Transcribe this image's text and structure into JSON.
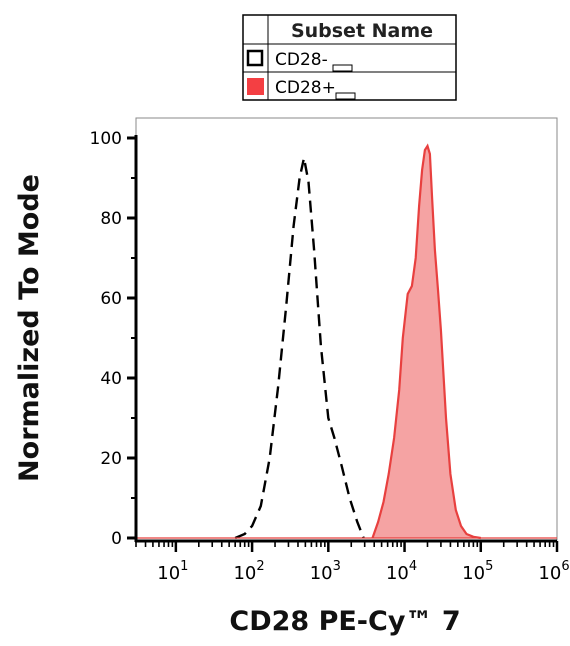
{
  "chart_data": {
    "type": "area",
    "xlabel": "CD28 PE-Cy™ 7",
    "ylabel": "Normalized To Mode",
    "x_scale": "log",
    "xlim": [
      3,
      1000000
    ],
    "ylim": [
      0,
      100
    ],
    "x_ticks": [
      {
        "base": "10",
        "exp": "1",
        "value": 10
      },
      {
        "base": "10",
        "exp": "2",
        "value": 100
      },
      {
        "base": "10",
        "exp": "3",
        "value": 1000
      },
      {
        "base": "10",
        "exp": "4",
        "value": 10000
      },
      {
        "base": "10",
        "exp": "5",
        "value": 100000
      },
      {
        "base": "10",
        "exp": "6",
        "value": 1000000
      }
    ],
    "y_ticks": [
      "0",
      "20",
      "40",
      "60",
      "80",
      "100"
    ],
    "grid": false,
    "legend": {
      "placement": "top-center",
      "header": "Subset Name",
      "entries": [
        "CD28-",
        "CD28+"
      ]
    },
    "series": [
      {
        "name": "CD28-",
        "style": "dashed-outline",
        "color": "#000000",
        "x": [
          60,
          80,
          100,
          130,
          170,
          220,
          280,
          350,
          420,
          480,
          550,
          650,
          800,
          1000,
          1200,
          1500,
          1900,
          2400,
          2900
        ],
        "y": [
          0,
          1,
          3,
          8,
          20,
          38,
          58,
          78,
          90,
          95,
          89,
          72,
          48,
          30,
          25,
          18,
          10,
          4,
          0
        ]
      },
      {
        "name": "CD28+",
        "style": "filled",
        "color": "#e8403f",
        "fill": "#f5a3a3",
        "x": [
          3800,
          4500,
          5300,
          6200,
          7300,
          8500,
          9500,
          11000,
          12500,
          14000,
          15500,
          17000,
          18500,
          20000,
          21500,
          23000,
          25000,
          27500,
          30000,
          35000,
          40000,
          47000,
          55000,
          65000,
          80000,
          100000
        ],
        "y": [
          0,
          4,
          9,
          16,
          25,
          37,
          50,
          61,
          63,
          70,
          83,
          92,
          97,
          98,
          96,
          85,
          72,
          62,
          52,
          30,
          16,
          7,
          3,
          1,
          0.3,
          0
        ]
      }
    ]
  }
}
